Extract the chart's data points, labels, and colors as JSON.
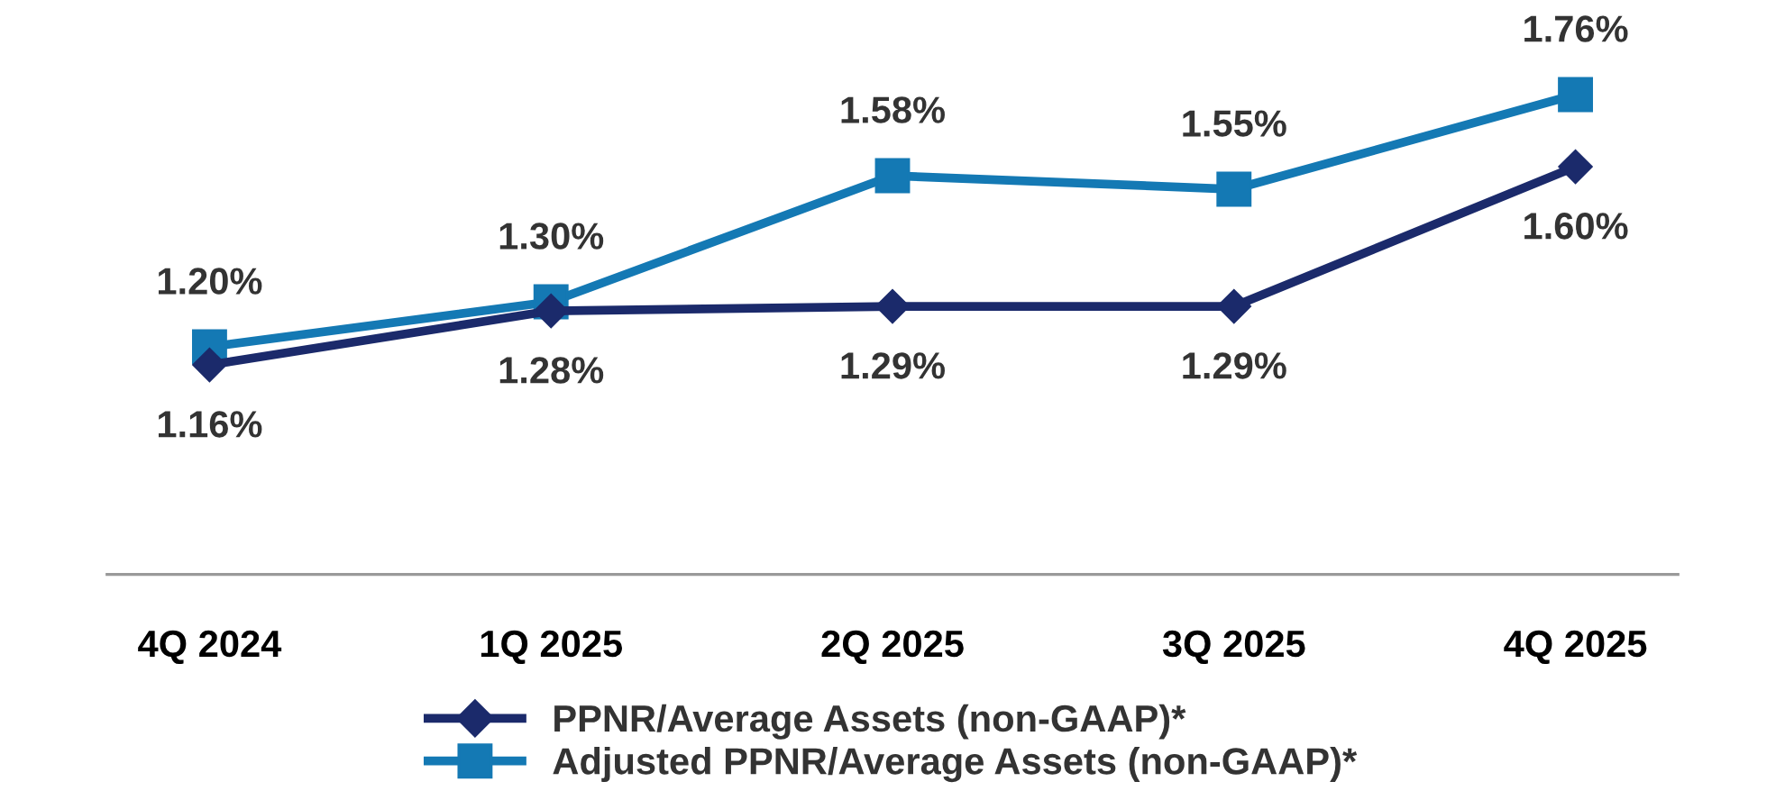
{
  "chart_data": {
    "type": "line",
    "categories": [
      "4Q 2024",
      "1Q 2025",
      "2Q 2025",
      "3Q 2025",
      "4Q 2025"
    ],
    "series": [
      {
        "name": "PPNR/Average Assets (non-GAAP)*",
        "color": "#1b2a6b",
        "marker": "diamond",
        "values": [
          1.16,
          1.28,
          1.29,
          1.29,
          1.6
        ],
        "value_labels": [
          "1.16%",
          "1.28%",
          "1.29%",
          "1.29%",
          "1.60%"
        ]
      },
      {
        "name": "Adjusted PPNR/Average Assets (non-GAAP)*",
        "color": "#1479b4",
        "marker": "square",
        "values": [
          1.2,
          1.3,
          1.58,
          1.55,
          1.76
        ],
        "value_labels": [
          "1.20%",
          "1.30%",
          "1.58%",
          "1.55%",
          "1.76%"
        ]
      }
    ],
    "tick_labels": "x",
    "grid": false,
    "legend": "bottom",
    "line_style": "solid"
  }
}
